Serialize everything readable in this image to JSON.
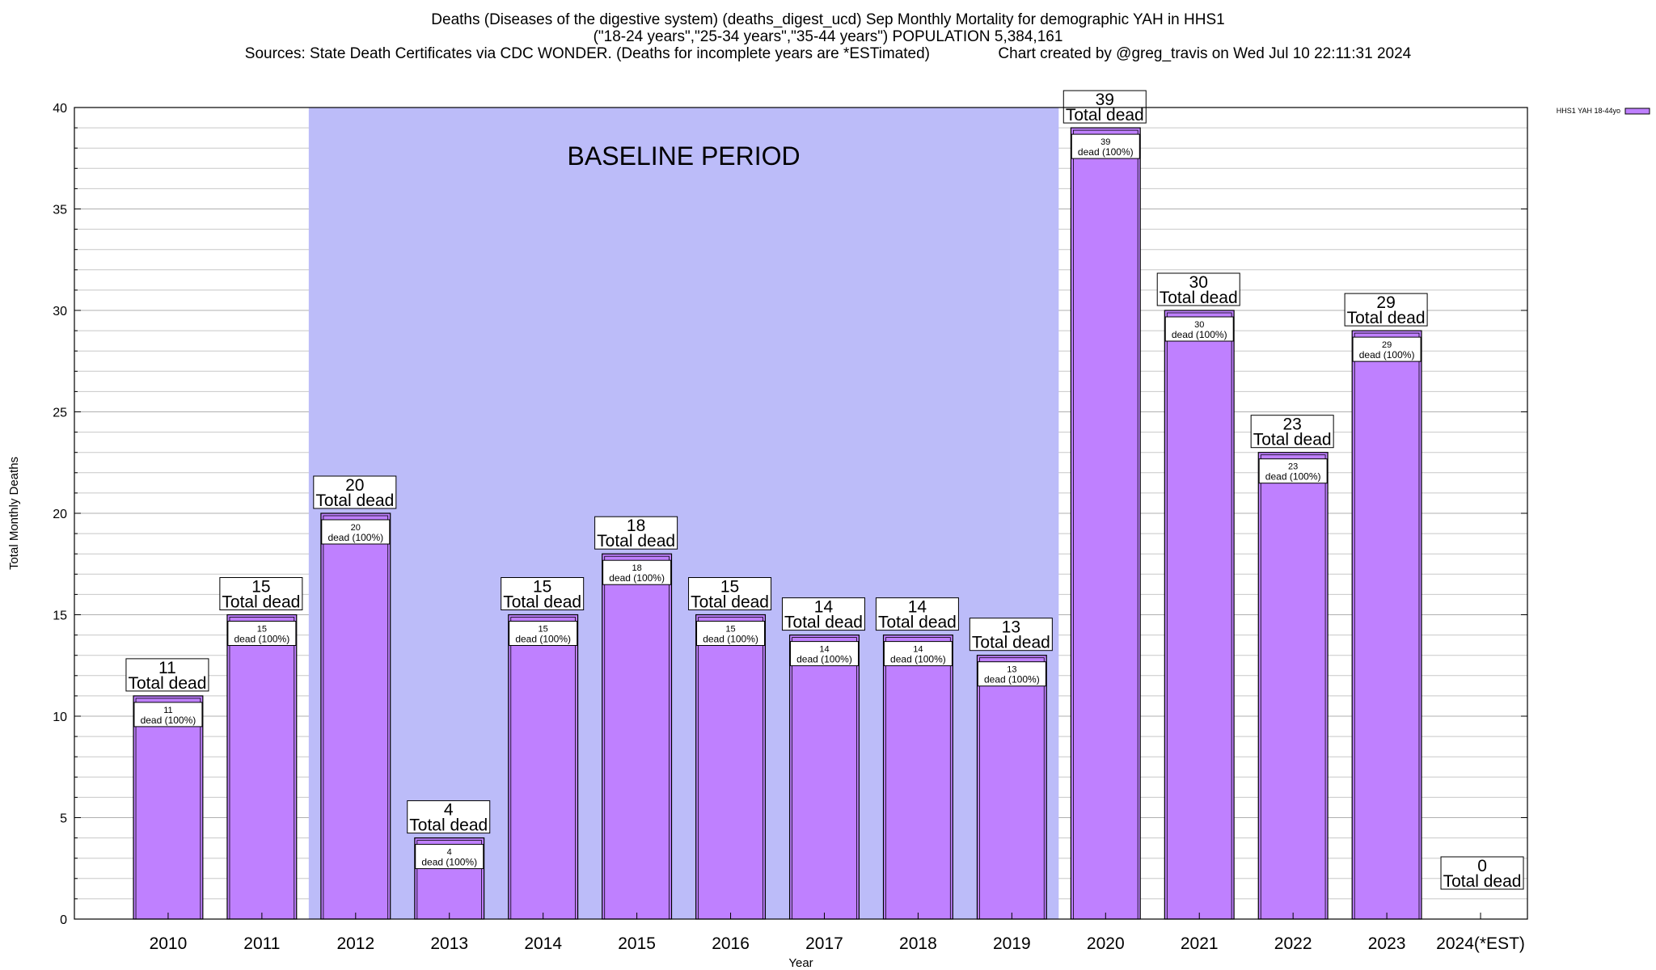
{
  "title_lines": [
    "Deaths (Diseases of the digestive system) (deaths_digest_ucd) Sep Monthly Mortality for demographic YAH in HHS1",
    "(\"18-24 years\",\"25-34 years\",\"35-44 years\") POPULATION 5,384,161",
    "Sources: State Death Certificates via CDC WONDER. (Deaths for incomplete years are *ESTimated)                Chart created by @greg_travis on Wed Jul 10 22:11:31 2024"
  ],
  "baseline_label": "BASELINE PERIOD",
  "colors": {
    "bar_fill": "#bf80ff",
    "baseline_fill": "#bcbcf9",
    "grid": "#c8c8c8"
  },
  "chart_data": {
    "type": "bar",
    "xlabel": "Year",
    "ylabel": "Total Monthly Deaths",
    "ylim": [
      0,
      40
    ],
    "yticks": [
      0,
      5,
      10,
      15,
      20,
      25,
      30,
      35,
      40
    ],
    "grid": true,
    "legend_position": "top-right",
    "categories": [
      "2010",
      "2011",
      "2012",
      "2013",
      "2014",
      "2015",
      "2016",
      "2017",
      "2018",
      "2019",
      "2020",
      "2021",
      "2022",
      "2023",
      "2024(*EST)"
    ],
    "series": [
      {
        "name": "HHS1 YAH 18-44yo",
        "values": [
          11,
          15,
          20,
          4,
          15,
          18,
          15,
          14,
          14,
          13,
          39,
          30,
          23,
          29,
          0
        ]
      }
    ],
    "top_label_suffix": "Total dead",
    "inner_label_suffix": "dead (100%)",
    "baseline_period": [
      "2012",
      "2019"
    ]
  }
}
